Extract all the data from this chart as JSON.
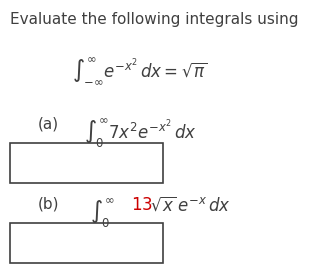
{
  "title": "Evaluate the following integrals using",
  "title_fontsize": 11,
  "bg_color": "#ffffff",
  "text_color": "#404040",
  "red_color": "#cc0000",
  "given_formula": "$\\int_{-\\infty}^{\\infty} e^{-x^2}\\, dx = \\sqrt{\\pi}$",
  "part_a_label": "(a)",
  "part_a_integral": "$\\int_{0}^{\\infty} 7x^2 e^{-x^2}\\, dx$",
  "part_b_label": "(b)",
  "part_b_integral_prefix": "$\\int_{0}^{\\infty}$",
  "part_b_integral_13": "$13\\sqrt{x}\\, e^{-x}\\, dx$",
  "box_color": "#404040",
  "box_facecolor": "#ffffff"
}
